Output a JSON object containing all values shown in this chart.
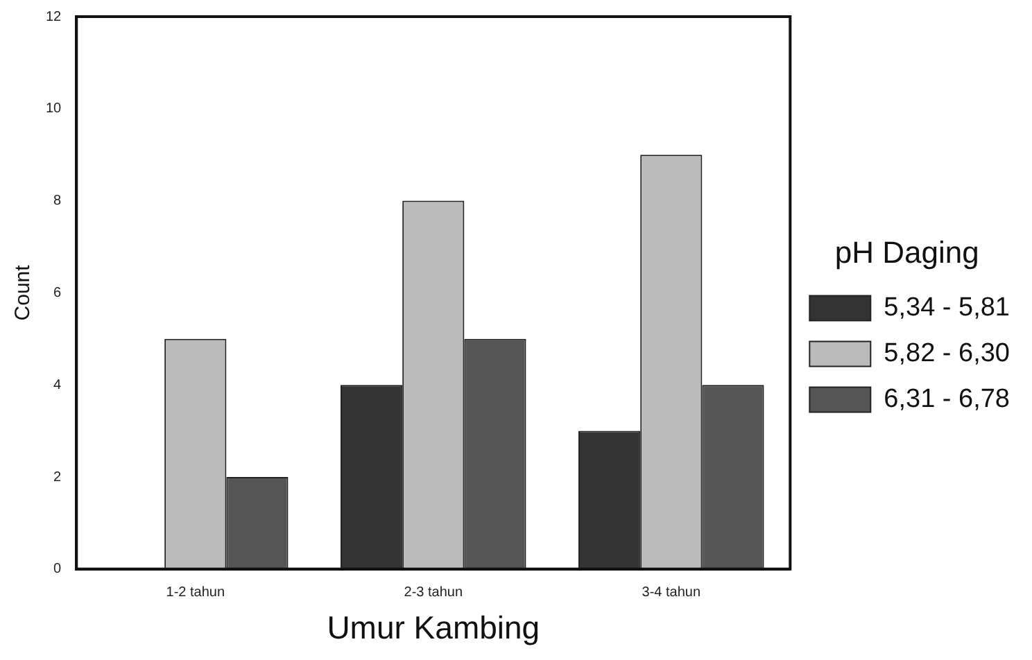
{
  "chart_data": {
    "type": "bar",
    "xlabel": "Umur Kambing",
    "ylabel": "Count",
    "legend_title": "pH Daging",
    "categories": [
      "1-2 tahun",
      "2-3 tahun",
      "3-4 tahun"
    ],
    "series": [
      {
        "name": "5,34 - 5,81",
        "color": "#333333",
        "values": [
          0,
          4,
          3
        ]
      },
      {
        "name": "5,82 - 6,30",
        "color": "#bbbbbb",
        "values": [
          5,
          8,
          9
        ]
      },
      {
        "name": "6,31 - 6,78",
        "color": "#555555",
        "values": [
          2,
          5,
          4
        ]
      }
    ],
    "ylim": [
      0,
      12
    ],
    "yticks": [
      0,
      2,
      4,
      6,
      8,
      10,
      12
    ],
    "grid": false,
    "legend": "right"
  }
}
